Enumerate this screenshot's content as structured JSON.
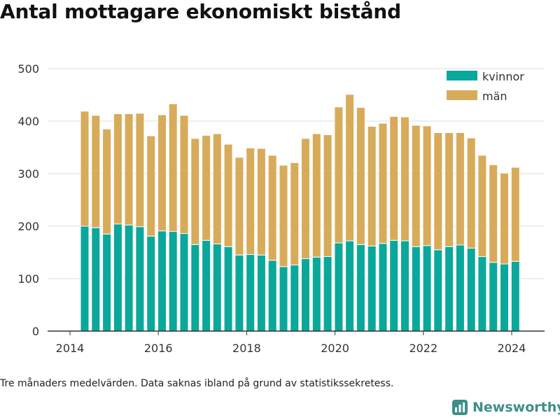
{
  "title": "Antal mottagare ekonomiskt bistånd",
  "footnote": "Tre månaders medelvärden. Data saknas ibland på grund av statistikssekretess.",
  "brand": "Newsworthy",
  "colors": {
    "kvinnor": "#0aa89b",
    "man": "#d8ab5a",
    "grid": "#dddddd",
    "axis": "#333333",
    "brand": "#3d8f8a"
  },
  "chart_data": {
    "type": "bar",
    "stacked": true,
    "x_axis_ticks": [
      "2014",
      "2016",
      "2018",
      "2020",
      "2022",
      "2024"
    ],
    "y_axis_ticks": [
      "0",
      "100",
      "200",
      "300",
      "400",
      "500"
    ],
    "xlim": [
      "2014-01",
      "2025-03"
    ],
    "ylim": [
      0,
      500
    ],
    "grid": true,
    "legend_placement": "top-right",
    "x": [
      "2014-05",
      "2014-08",
      "2014-11",
      "2015-02",
      "2015-05",
      "2015-08",
      "2015-11",
      "2016-02",
      "2016-05",
      "2016-08",
      "2016-11",
      "2017-02",
      "2017-05",
      "2017-08",
      "2017-11",
      "2018-02",
      "2018-05",
      "2018-08",
      "2018-11",
      "2019-02",
      "2019-05",
      "2019-08",
      "2019-11",
      "2020-02",
      "2020-05",
      "2020-08",
      "2020-11",
      "2021-02",
      "2021-05",
      "2021-08",
      "2021-11",
      "2022-02",
      "2022-05",
      "2022-08",
      "2022-11",
      "2023-02",
      "2023-05",
      "2023-08",
      "2023-11",
      "2024-02"
    ],
    "series": [
      {
        "name": "kvinnor",
        "values": [
          200,
          197,
          185,
          204,
          202,
          199,
          181,
          191,
          190,
          186,
          165,
          173,
          166,
          161,
          145,
          146,
          145,
          135,
          123,
          126,
          138,
          141,
          142,
          168,
          172,
          165,
          162,
          167,
          173,
          172,
          161,
          163,
          155,
          161,
          164,
          158,
          142,
          131,
          128,
          133
        ]
      },
      {
        "name": "män",
        "values": [
          219,
          214,
          200,
          210,
          212,
          216,
          191,
          221,
          243,
          225,
          202,
          200,
          210,
          195,
          186,
          203,
          203,
          200,
          193,
          195,
          229,
          235,
          232,
          259,
          279,
          261,
          228,
          229,
          236,
          236,
          231,
          228,
          223,
          217,
          214,
          210,
          193,
          186,
          173,
          179
        ]
      }
    ]
  }
}
